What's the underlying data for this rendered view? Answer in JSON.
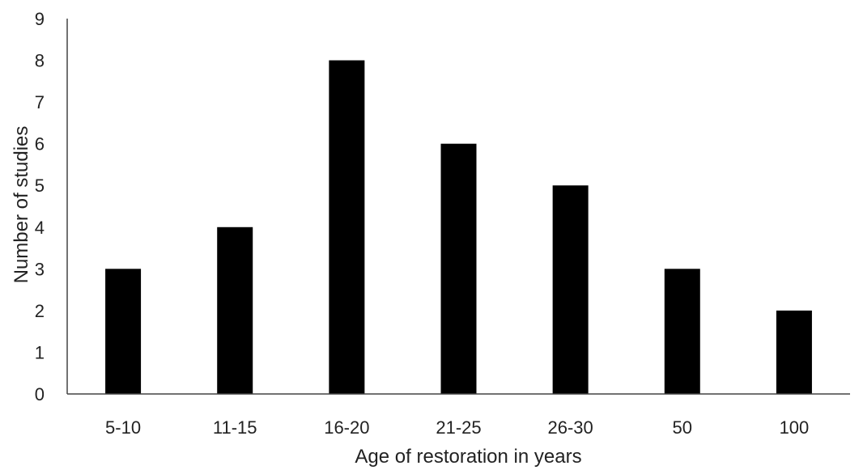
{
  "chart_data": {
    "type": "bar",
    "title": "",
    "xlabel": "Age of restoration in years",
    "ylabel": "Number of studies",
    "categories": [
      "5-10",
      "11-15",
      "16-20",
      "21-25",
      "26-30",
      "50",
      "100"
    ],
    "values": [
      3,
      4,
      8,
      6,
      5,
      3,
      2
    ],
    "ylim": [
      0,
      9
    ],
    "yticks": [
      "0",
      "1",
      "2",
      "3",
      "4",
      "5",
      "6",
      "7",
      "8",
      "9"
    ],
    "grid": false,
    "legend": "none",
    "bar_color": "#000000",
    "axis_color": "#444444"
  }
}
